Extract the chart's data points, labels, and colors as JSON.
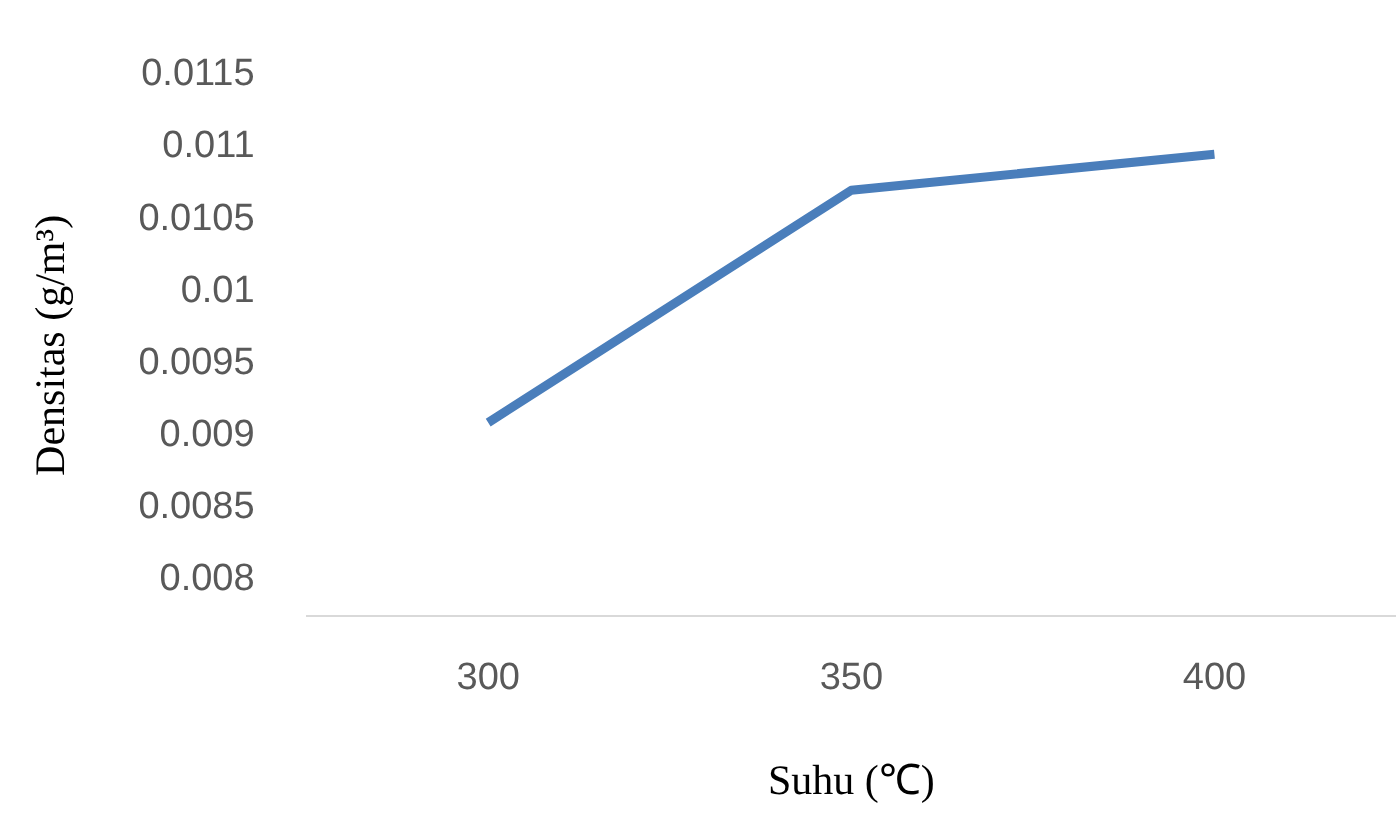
{
  "chart_data": {
    "type": "line",
    "xlabel": "Suhu (℃)",
    "ylabel": "Densitas (g/m³)",
    "categories": [
      "300",
      "350",
      "400"
    ],
    "series": [
      {
        "color": "#4a7ebb",
        "values": [
          0.00909,
          0.0107,
          0.01095
        ]
      }
    ],
    "ylim": [
      0.00775,
      0.0115
    ],
    "yticks": [
      0.008,
      0.0085,
      0.009,
      0.0095,
      0.01,
      0.0105,
      0.011,
      0.0115
    ],
    "grid": false,
    "legend": false,
    "marker": "none",
    "line_style": "solid"
  }
}
